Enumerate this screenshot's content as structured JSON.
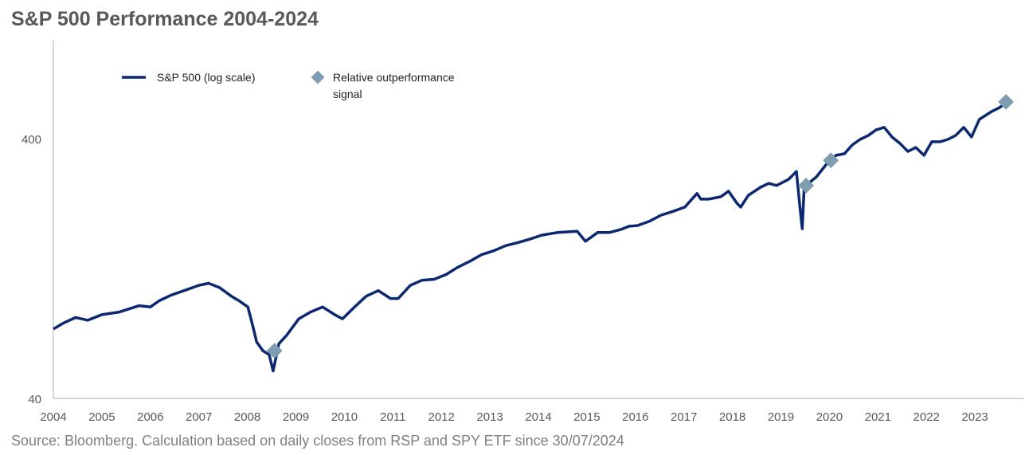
{
  "chart_data": {
    "type": "line",
    "title": "S&P 500 Performance 2004-2024",
    "source": "Source: Bloomberg. Calculation based on daily closes from RSP and SPY ETF since 30/07/2024",
    "y_scale": "log",
    "ylim": [
      40,
      960
    ],
    "xlim": [
      2004,
      2024
    ],
    "y_ticks": [
      "40",
      "400"
    ],
    "y_tick_values": [
      40,
      400
    ],
    "x_ticks": [
      "2004",
      "2005",
      "2006",
      "2007",
      "2008",
      "2009",
      "2010",
      "2011",
      "2012",
      "2013",
      "2014",
      "2015",
      "2016",
      "2017",
      "2018",
      "2019",
      "2020",
      "2021",
      "2022",
      "2023"
    ],
    "grid": false,
    "legend_placement": "top-left",
    "legend": [
      "S&P 500 (log scale)",
      "Relative outperformance signal"
    ],
    "colors": {
      "line": "#0c2870",
      "marker": "#7f9db0",
      "axis": "#bfbfbf",
      "text": "#595959"
    },
    "series": [
      {
        "name": "S&P 500 (log scale)",
        "x": [
          2004.0,
          2004.21,
          2004.46,
          2004.71,
          2005.0,
          2005.36,
          2005.77,
          2006.0,
          2006.18,
          2006.43,
          2006.76,
          2007.0,
          2007.2,
          2007.42,
          2007.67,
          2007.83,
          2008.01,
          2008.12,
          2008.19,
          2008.32,
          2008.45,
          2008.53,
          2008.65,
          2008.81,
          2009.06,
          2009.3,
          2009.55,
          2009.8,
          2009.96,
          2010.21,
          2010.45,
          2010.7,
          2010.95,
          2011.11,
          2011.36,
          2011.6,
          2011.85,
          2012.1,
          2012.34,
          2012.59,
          2012.83,
          2013.08,
          2013.33,
          2013.57,
          2013.82,
          2014.07,
          2014.39,
          2014.8,
          2014.97,
          2015.22,
          2015.46,
          2015.71,
          2015.87,
          2016.04,
          2016.28,
          2016.53,
          2016.78,
          2017.02,
          2017.27,
          2017.35,
          2017.51,
          2017.76,
          2017.92,
          2018.09,
          2018.17,
          2018.33,
          2018.58,
          2018.75,
          2018.91,
          2019.16,
          2019.32,
          2019.4,
          2019.44,
          2019.48,
          2019.57,
          2019.73,
          2019.98,
          2020.14,
          2020.31,
          2020.47,
          2020.63,
          2020.8,
          2020.96,
          2021.13,
          2021.29,
          2021.45,
          2021.62,
          2021.78,
          2021.95,
          2022.11,
          2022.28,
          2022.44,
          2022.6,
          2022.77,
          2022.93,
          2023.09,
          2023.34,
          2023.51,
          2023.67
        ],
        "values": [
          74,
          78,
          82,
          80,
          84,
          86,
          91,
          90,
          95,
          100,
          105,
          109,
          111,
          107,
          99,
          95,
          90,
          75,
          66,
          61,
          59,
          51,
          65,
          70,
          81,
          86,
          90,
          84,
          81,
          90,
          99,
          104,
          97,
          97,
          109,
          114,
          115,
          120,
          128,
          135,
          143,
          148,
          155,
          159,
          164,
          170,
          174,
          176,
          161,
          174,
          174,
          179,
          184,
          185,
          192,
          203,
          210,
          218,
          246,
          234,
          234,
          239,
          251,
          226,
          218,
          242,
          260,
          269,
          264,
          279,
          299,
          210,
          180,
          260,
          269,
          285,
          326,
          345,
          350,
          378,
          397,
          411,
          432,
          442,
          406,
          384,
          357,
          370,
          345,
          389,
          389,
          397,
          411,
          442,
          406,
          474,
          508,
          527,
          554
        ]
      }
    ],
    "markers": {
      "name": "Relative outperformance signal",
      "x": [
        2008.56,
        2019.52,
        2020.03,
        2023.64
      ],
      "values": [
        61,
        264,
        330,
        554
      ]
    }
  }
}
